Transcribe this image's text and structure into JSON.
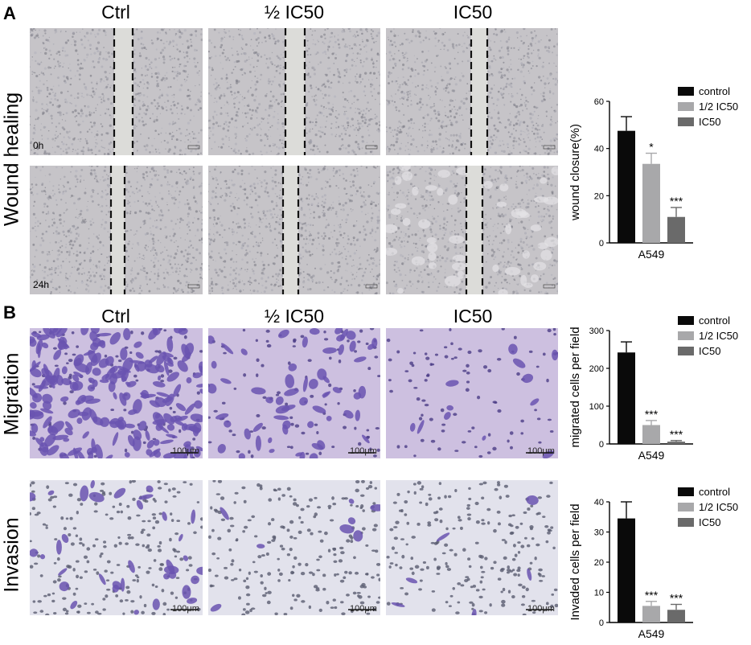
{
  "panel_a": {
    "letter": "A",
    "columns": [
      "Ctrl",
      "½ IC50",
      "IC50"
    ],
    "row_label": "Wound healing",
    "time_labels": [
      "0h",
      "24h"
    ]
  },
  "panel_b": {
    "letter": "B",
    "columns": [
      "Ctrl",
      "½ IC50",
      "IC50"
    ],
    "rows": [
      "Migration",
      "Invasion"
    ],
    "scale_bar": "100μm"
  },
  "colors": {
    "control": "#0a0a0a",
    "half_ic50": "#a8a8aa",
    "ic50": "#6a6a6a",
    "wound_bg": "#c6c4c8",
    "migration_bg": "#cdc0e0",
    "invasion_bg": "#e2e2ec",
    "stain": "#6a54b0"
  },
  "chart_data": [
    {
      "type": "bar",
      "categories": [
        "control",
        "1/2 IC50",
        "IC50"
      ],
      "values": [
        47.5,
        33.5,
        11
      ],
      "errors": [
        6,
        4.5,
        4
      ],
      "significance": [
        "",
        "*",
        "***"
      ],
      "ylabel": "wound closure(%)",
      "xlabel": "A549",
      "ylim": [
        0,
        60
      ],
      "yticks": [
        0,
        20,
        40,
        60
      ],
      "legend": [
        "control",
        "1/2 IC50",
        "IC50"
      ]
    },
    {
      "type": "bar",
      "categories": [
        "control",
        "1/2 IC50",
        "IC50"
      ],
      "values": [
        242,
        50,
        6
      ],
      "errors": [
        28,
        12,
        3
      ],
      "significance": [
        "",
        "***",
        "***"
      ],
      "ylabel": "migrated cells per field",
      "xlabel": "A549",
      "ylim": [
        0,
        300
      ],
      "yticks": [
        0,
        100,
        200,
        300
      ],
      "legend": [
        "control",
        "1/2 IC50",
        "IC50"
      ]
    },
    {
      "type": "bar",
      "categories": [
        "control",
        "1/2 IC50",
        "IC50"
      ],
      "values": [
        34.5,
        5.5,
        4.2
      ],
      "errors": [
        5.5,
        1.5,
        1.8
      ],
      "significance": [
        "",
        "***",
        "***"
      ],
      "ylabel": "Invaded cells per field",
      "xlabel": "A549",
      "ylim": [
        0,
        40
      ],
      "yticks": [
        0,
        10,
        20,
        30,
        40
      ],
      "legend": [
        "control",
        "1/2 IC50",
        "IC50"
      ]
    }
  ]
}
